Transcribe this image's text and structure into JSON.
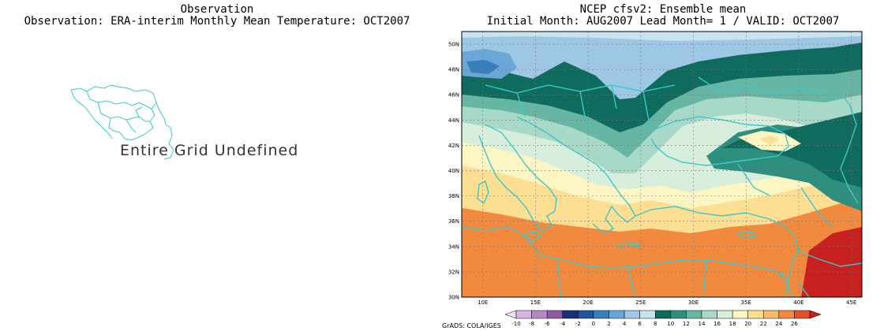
{
  "left_panel": {
    "title_line1": "Observation",
    "title_line2": "Observation: ERA-interim Monthly Mean Temperature: OCT2007",
    "message": "Entire Grid Undefined"
  },
  "right_panel": {
    "title_line1": "NCEP cfsv2: Ensemble mean",
    "title_line2": "Initial Month: AUG2007  Lead Month= 1 / VALID: OCT2007"
  },
  "map": {
    "lon_labels": [
      "10E",
      "15E",
      "20E",
      "25E",
      "30E",
      "35E",
      "40E",
      "45E"
    ],
    "lat_labels": [
      "50N",
      "48N",
      "46N",
      "44N",
      "42N",
      "40N",
      "38N",
      "36N",
      "34N",
      "32N",
      "30N"
    ],
    "coastline_color": "#3cc8c8"
  },
  "colorbar": {
    "labels": [
      "-10",
      "-8",
      "-6",
      "-4",
      "-2",
      "0",
      "2",
      "4",
      "6",
      "8",
      "10",
      "12",
      "14",
      "16",
      "18",
      "20",
      "22",
      "24",
      "26"
    ],
    "colors": [
      "#f3e1f5",
      "#d6b6e0",
      "#b38ac4",
      "#8e5aa3",
      "#1b2f78",
      "#21569a",
      "#3a7fbd",
      "#6aa6d6",
      "#9ec6e5",
      "#c8e2ee",
      "#0e6b5e",
      "#2f8f7f",
      "#67b6a4",
      "#a8d8c8",
      "#d8eedc",
      "#fdf6c2",
      "#fddf93",
      "#f9b96a",
      "#f1893f",
      "#e1522a",
      "#c7201e"
    ],
    "credit": "GrADS: COLA/IGES"
  }
}
